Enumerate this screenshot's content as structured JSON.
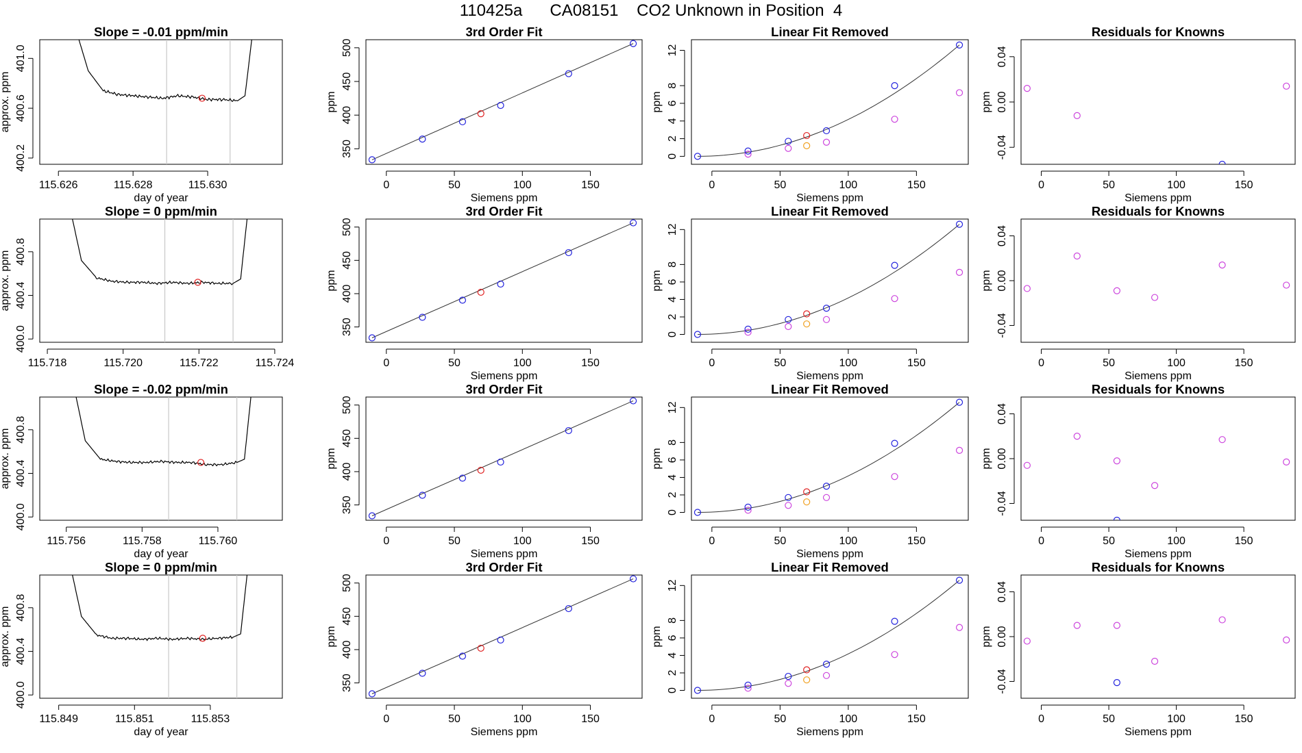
{
  "figure_title": "110425a      CA08151    CO2 Unknown in Position  4",
  "colors": {
    "trace": "#000000",
    "vline": "#c8c8c8",
    "fit_line": "#333333",
    "known": "#2222dd",
    "unknown": "#e02020",
    "unknown_linear": "#f0a020",
    "residual": "#cc44dd"
  },
  "chart_data": [
    {
      "type": "line",
      "row": 1,
      "column": 1,
      "title": "Slope =  -0.01  ppm/min",
      "xlabel": "day of year",
      "ylabel": "approx. ppm",
      "xlim": [
        115.6255,
        115.632
      ],
      "ylim": [
        400.15,
        401.15
      ],
      "xticks": [
        115.626,
        115.628,
        115.63
      ],
      "xtick_labels": [
        "115.626",
        "115.628",
        "115.630"
      ],
      "yticks": [
        400.2,
        400.6,
        401.0
      ],
      "ytick_labels": [
        "400.2",
        "400.6",
        "401.0"
      ],
      "vlines": [
        115.6289,
        115.6306
      ],
      "flat_level": 400.68,
      "marker": {
        "x": 115.62985,
        "y": 400.68
      },
      "trace": [
        [
          115.6265,
          401.2
        ],
        [
          115.6268,
          400.9
        ],
        [
          115.6272,
          400.74
        ],
        [
          115.6276,
          400.71
        ],
        [
          115.628,
          400.7
        ],
        [
          115.6284,
          400.69
        ],
        [
          115.6288,
          400.68
        ],
        [
          115.6292,
          400.7
        ],
        [
          115.6296,
          400.69
        ],
        [
          115.63,
          400.67
        ],
        [
          115.6304,
          400.67
        ],
        [
          115.6308,
          400.66
        ],
        [
          115.631,
          400.7
        ],
        [
          115.6312,
          401.2
        ]
      ]
    },
    {
      "type": "scatter",
      "row": 1,
      "column": 2,
      "title": "3rd Order Fit",
      "xlabel": "Siemens ppm",
      "ylabel": "ppm",
      "xlim": [
        -15,
        188
      ],
      "ylim": [
        327,
        512
      ],
      "xticks": [
        0,
        50,
        100,
        150
      ],
      "yticks": [
        350,
        400,
        450,
        500
      ],
      "fit_line": [
        [
          -10.5,
          333.7
        ],
        [
          181.5,
          506.3
        ]
      ],
      "known_points": [
        [
          -10.5,
          333.7
        ],
        [
          26.5,
          364.5
        ],
        [
          56,
          390.2
        ],
        [
          84,
          414.4
        ],
        [
          134,
          461.6
        ],
        [
          181.5,
          506.3
        ]
      ],
      "unknown_points": [
        [
          69.5,
          402.1
        ]
      ]
    },
    {
      "type": "scatter",
      "row": 1,
      "column": 3,
      "title": "Linear Fit Removed",
      "xlabel": "Siemens ppm",
      "ylabel": "ppm",
      "xlim": [
        -15,
        188
      ],
      "ylim": [
        -0.9,
        13.2
      ],
      "xticks": [
        0,
        50,
        100,
        150
      ],
      "yticks": [
        0,
        2,
        4,
        6,
        8,
        12
      ],
      "fit_curve_endpoints": [
        [
          -10.5,
          0
        ],
        [
          181.5,
          12.6
        ]
      ],
      "known_points": [
        [
          -10.5,
          0.0
        ],
        [
          26.5,
          0.6
        ],
        [
          56,
          1.7
        ],
        [
          84,
          2.9
        ],
        [
          134,
          8.0
        ],
        [
          181.5,
          12.6
        ]
      ],
      "unknown_point": [
        69.5,
        2.35
      ],
      "unknown_linear_point": [
        69.5,
        1.2
      ],
      "linear_points": [
        [
          26.5,
          0.25
        ],
        [
          56,
          0.9
        ],
        [
          84,
          1.6
        ],
        [
          134,
          4.2
        ],
        [
          181.5,
          7.2
        ]
      ]
    },
    {
      "type": "scatter",
      "row": 1,
      "column": 4,
      "title": "Residuals for Knowns",
      "xlabel": "Siemens ppm",
      "ylabel": "ppm",
      "xlim": [
        -15,
        188
      ],
      "ylim": [
        -0.055,
        0.055
      ],
      "xticks": [
        0,
        50,
        100,
        150
      ],
      "yticks": [
        -0.04,
        0.0,
        0.04
      ],
      "ytick_labels": [
        "-0.04",
        "0.00",
        "0.04"
      ],
      "residual_points": [
        [
          -10.5,
          0.012
        ],
        [
          26.5,
          -0.012
        ],
        [
          181.5,
          0.014
        ]
      ],
      "known_points": [
        [
          134,
          -0.055
        ]
      ]
    },
    {
      "type": "line",
      "row": 2,
      "column": 1,
      "title": "Slope =  0  ppm/min",
      "xlabel": "",
      "ylabel": "approx. ppm",
      "xlim": [
        115.7178,
        115.7242
      ],
      "ylim": [
        399.97,
        401.1
      ],
      "xticks": [
        115.718,
        115.72,
        115.722,
        115.724
      ],
      "xtick_labels": [
        "115.718",
        "115.720",
        "115.722",
        "115.724"
      ],
      "yticks": [
        400.0,
        400.4,
        400.8
      ],
      "ytick_labels": [
        "400.0",
        "400.4",
        "400.8"
      ],
      "vlines": [
        115.7211,
        115.7229
      ],
      "flat_level": 400.52,
      "marker": {
        "x": 115.72197,
        "y": 400.52
      },
      "trace": [
        [
          115.7186,
          401.2
        ],
        [
          115.7189,
          400.72
        ],
        [
          115.7193,
          400.56
        ],
        [
          115.7197,
          400.53
        ],
        [
          115.7201,
          400.52
        ],
        [
          115.7205,
          400.52
        ],
        [
          115.7209,
          400.51
        ],
        [
          115.7213,
          400.52
        ],
        [
          115.7217,
          400.51
        ],
        [
          115.7221,
          400.52
        ],
        [
          115.7225,
          400.51
        ],
        [
          115.7229,
          400.51
        ],
        [
          115.7231,
          400.55
        ],
        [
          115.7233,
          401.2
        ]
      ]
    },
    {
      "type": "scatter",
      "row": 2,
      "column": 2,
      "title": "3rd Order Fit",
      "xlabel": "Siemens ppm",
      "ylabel": "ppm",
      "xlim": [
        -15,
        188
      ],
      "ylim": [
        327,
        512
      ],
      "xticks": [
        0,
        50,
        100,
        150
      ],
      "yticks": [
        350,
        400,
        450,
        500
      ],
      "fit_line": [
        [
          -10.5,
          333.7
        ],
        [
          181.5,
          506.3
        ]
      ],
      "known_points": [
        [
          -10.5,
          333.7
        ],
        [
          26.5,
          364.5
        ],
        [
          56,
          390.2
        ],
        [
          84,
          414.4
        ],
        [
          134,
          461.6
        ],
        [
          181.5,
          506.3
        ]
      ],
      "unknown_points": [
        [
          69.5,
          402.1
        ]
      ]
    },
    {
      "type": "scatter",
      "row": 2,
      "column": 3,
      "title": "Linear Fit Removed",
      "xlabel": "Siemens ppm",
      "ylabel": "ppm",
      "xlim": [
        -15,
        188
      ],
      "ylim": [
        -0.9,
        13.2
      ],
      "xticks": [
        0,
        50,
        100,
        150
      ],
      "yticks": [
        0,
        2,
        4,
        6,
        8,
        12
      ],
      "fit_curve_endpoints": [
        [
          -10.5,
          0
        ],
        [
          181.5,
          12.6
        ]
      ],
      "known_points": [
        [
          -10.5,
          0.0
        ],
        [
          26.5,
          0.6
        ],
        [
          56,
          1.7
        ],
        [
          84,
          3.0
        ],
        [
          134,
          7.9
        ],
        [
          181.5,
          12.6
        ]
      ],
      "unknown_point": [
        69.5,
        2.35
      ],
      "unknown_linear_point": [
        69.5,
        1.2
      ],
      "linear_points": [
        [
          26.5,
          0.25
        ],
        [
          56,
          0.9
        ],
        [
          84,
          1.7
        ],
        [
          134,
          4.1
        ],
        [
          181.5,
          7.1
        ]
      ]
    },
    {
      "type": "scatter",
      "row": 2,
      "column": 4,
      "title": "Residuals for Knowns",
      "xlabel": "Siemens ppm",
      "ylabel": "ppm",
      "xlim": [
        -15,
        188
      ],
      "ylim": [
        -0.055,
        0.055
      ],
      "xticks": [
        0,
        50,
        100,
        150
      ],
      "yticks": [
        -0.04,
        0.0,
        0.04
      ],
      "ytick_labels": [
        "-0.04",
        "0.00",
        "0.04"
      ],
      "residual_points": [
        [
          -10.5,
          -0.007
        ],
        [
          26.5,
          0.022
        ],
        [
          56,
          -0.009
        ],
        [
          84,
          -0.015
        ],
        [
          134,
          0.014
        ],
        [
          181.5,
          -0.004
        ]
      ],
      "known_points": []
    },
    {
      "type": "line",
      "row": 3,
      "column": 1,
      "title": "Slope =  -0.02  ppm/min",
      "xlabel": "day of year",
      "ylabel": "approx. ppm",
      "xlim": [
        115.7553,
        115.7617
      ],
      "ylim": [
        399.97,
        401.1
      ],
      "xticks": [
        115.756,
        115.758,
        115.76
      ],
      "xtick_labels": [
        "115.756",
        "115.758",
        "115.760"
      ],
      "yticks": [
        400.0,
        400.4,
        400.8
      ],
      "ytick_labels": [
        "400.0",
        "400.4",
        "400.8"
      ],
      "vlines": [
        115.7587,
        115.7605
      ],
      "flat_level": 400.5,
      "marker": {
        "x": 115.75955,
        "y": 400.5
      },
      "trace": [
        [
          115.7562,
          401.2
        ],
        [
          115.7565,
          400.7
        ],
        [
          115.7569,
          400.53
        ],
        [
          115.7573,
          400.51
        ],
        [
          115.7577,
          400.5
        ],
        [
          115.7581,
          400.5
        ],
        [
          115.7585,
          400.51
        ],
        [
          115.7589,
          400.5
        ],
        [
          115.7593,
          400.5
        ],
        [
          115.7597,
          400.48
        ],
        [
          115.7601,
          400.48
        ],
        [
          115.7605,
          400.5
        ],
        [
          115.7607,
          400.53
        ],
        [
          115.7609,
          401.2
        ]
      ]
    },
    {
      "type": "scatter",
      "row": 3,
      "column": 2,
      "title": "3rd Order Fit",
      "xlabel": "Siemens ppm",
      "ylabel": "ppm",
      "xlim": [
        -15,
        188
      ],
      "ylim": [
        327,
        512
      ],
      "xticks": [
        0,
        50,
        100,
        150
      ],
      "yticks": [
        350,
        400,
        450,
        500
      ],
      "fit_line": [
        [
          -10.5,
          333.7
        ],
        [
          181.5,
          506.3
        ]
      ],
      "known_points": [
        [
          -10.5,
          333.7
        ],
        [
          26.5,
          364.5
        ],
        [
          56,
          390.2
        ],
        [
          84,
          414.4
        ],
        [
          134,
          461.6
        ],
        [
          181.5,
          506.3
        ]
      ],
      "unknown_points": [
        [
          69.5,
          402.1
        ]
      ]
    },
    {
      "type": "scatter",
      "row": 3,
      "column": 3,
      "title": "Linear Fit Removed",
      "xlabel": "Siemens ppm",
      "ylabel": "ppm",
      "xlim": [
        -15,
        188
      ],
      "ylim": [
        -0.9,
        13.2
      ],
      "xticks": [
        0,
        50,
        100,
        150
      ],
      "yticks": [
        0,
        2,
        4,
        6,
        8,
        12
      ],
      "fit_curve_endpoints": [
        [
          -10.5,
          0
        ],
        [
          181.5,
          12.6
        ]
      ],
      "known_points": [
        [
          -10.5,
          0.0
        ],
        [
          26.5,
          0.6
        ],
        [
          56,
          1.7
        ],
        [
          84,
          3.0
        ],
        [
          134,
          7.9
        ],
        [
          181.5,
          12.6
        ]
      ],
      "unknown_point": [
        69.5,
        2.35
      ],
      "unknown_linear_point": [
        69.5,
        1.2
      ],
      "linear_points": [
        [
          26.5,
          0.25
        ],
        [
          56,
          0.8
        ],
        [
          84,
          1.7
        ],
        [
          134,
          4.1
        ],
        [
          181.5,
          7.1
        ]
      ]
    },
    {
      "type": "scatter",
      "row": 3,
      "column": 4,
      "title": "Residuals for Knowns",
      "xlabel": "Siemens ppm",
      "ylabel": "ppm",
      "xlim": [
        -15,
        188
      ],
      "ylim": [
        -0.055,
        0.055
      ],
      "xticks": [
        0,
        50,
        100,
        150
      ],
      "yticks": [
        -0.04,
        0.0,
        0.04
      ],
      "ytick_labels": [
        "-0.04",
        "0.00",
        "0.04"
      ],
      "residual_points": [
        [
          -10.5,
          -0.006
        ],
        [
          26.5,
          0.02
        ],
        [
          56,
          -0.002
        ],
        [
          84,
          -0.024
        ],
        [
          134,
          0.017
        ],
        [
          181.5,
          -0.003
        ]
      ],
      "known_points": [
        [
          56,
          -0.055
        ]
      ]
    },
    {
      "type": "line",
      "row": 4,
      "column": 1,
      "title": "Slope =  0  ppm/min",
      "xlabel": "day of year",
      "ylabel": "approx. ppm",
      "xlim": [
        115.8485,
        115.8549
      ],
      "ylim": [
        399.97,
        401.1
      ],
      "xticks": [
        115.849,
        115.851,
        115.853
      ],
      "xtick_labels": [
        "115.849",
        "115.851",
        "115.853"
      ],
      "yticks": [
        400.0,
        400.4,
        400.8
      ],
      "ytick_labels": [
        "400.0",
        "400.4",
        "400.8"
      ],
      "vlines": [
        115.8519,
        115.8537
      ],
      "flat_level": 400.52,
      "marker": {
        "x": 115.8528,
        "y": 400.52
      },
      "trace": [
        [
          115.8493,
          401.2
        ],
        [
          115.8496,
          400.72
        ],
        [
          115.85,
          400.55
        ],
        [
          115.8504,
          400.52
        ],
        [
          115.8508,
          400.52
        ],
        [
          115.8512,
          400.51
        ],
        [
          115.8516,
          400.52
        ],
        [
          115.852,
          400.51
        ],
        [
          115.8524,
          400.52
        ],
        [
          115.8528,
          400.51
        ],
        [
          115.8532,
          400.52
        ],
        [
          115.8536,
          400.53
        ],
        [
          115.8538,
          400.56
        ],
        [
          115.854,
          401.2
        ]
      ]
    },
    {
      "type": "scatter",
      "row": 4,
      "column": 2,
      "title": "3rd Order Fit",
      "xlabel": "Siemens ppm",
      "ylabel": "ppm",
      "xlim": [
        -15,
        188
      ],
      "ylim": [
        327,
        512
      ],
      "xticks": [
        0,
        50,
        100,
        150
      ],
      "yticks": [
        350,
        400,
        450,
        500
      ],
      "fit_line": [
        [
          -10.5,
          333.7
        ],
        [
          181.5,
          506.3
        ]
      ],
      "known_points": [
        [
          -10.5,
          333.7
        ],
        [
          26.5,
          364.5
        ],
        [
          56,
          390.2
        ],
        [
          84,
          414.4
        ],
        [
          134,
          461.6
        ],
        [
          181.5,
          506.3
        ]
      ],
      "unknown_points": [
        [
          69.5,
          402.1
        ]
      ]
    },
    {
      "type": "scatter",
      "row": 4,
      "column": 3,
      "title": "Linear Fit Removed",
      "xlabel": "Siemens ppm",
      "ylabel": "ppm",
      "xlim": [
        -15,
        188
      ],
      "ylim": [
        -0.9,
        13.2
      ],
      "xticks": [
        0,
        50,
        100,
        150
      ],
      "yticks": [
        0,
        2,
        4,
        6,
        8,
        12
      ],
      "fit_curve_endpoints": [
        [
          -10.5,
          0
        ],
        [
          181.5,
          12.6
        ]
      ],
      "known_points": [
        [
          -10.5,
          0.0
        ],
        [
          26.5,
          0.6
        ],
        [
          56,
          1.6
        ],
        [
          84,
          3.0
        ],
        [
          134,
          7.9
        ],
        [
          181.5,
          12.6
        ]
      ],
      "unknown_point": [
        69.5,
        2.35
      ],
      "unknown_linear_point": [
        69.5,
        1.2
      ],
      "linear_points": [
        [
          26.5,
          0.25
        ],
        [
          56,
          0.8
        ],
        [
          84,
          1.7
        ],
        [
          134,
          4.1
        ],
        [
          181.5,
          7.2
        ]
      ]
    },
    {
      "type": "scatter",
      "row": 4,
      "column": 4,
      "title": "Residuals for Knowns",
      "xlabel": "Siemens ppm",
      "ylabel": "ppm",
      "xlim": [
        -15,
        188
      ],
      "ylim": [
        -0.055,
        0.055
      ],
      "xticks": [
        0,
        50,
        100,
        150
      ],
      "yticks": [
        -0.04,
        0.0,
        0.04
      ],
      "ytick_labels": [
        "-0.04",
        "0.00",
        "0.04"
      ],
      "residual_points": [
        [
          -10.5,
          -0.004
        ],
        [
          26.5,
          0.01
        ],
        [
          56,
          0.01
        ],
        [
          84,
          -0.022
        ],
        [
          134,
          0.015
        ],
        [
          181.5,
          -0.003
        ]
      ],
      "known_points": [
        [
          56,
          -0.041
        ]
      ]
    }
  ]
}
